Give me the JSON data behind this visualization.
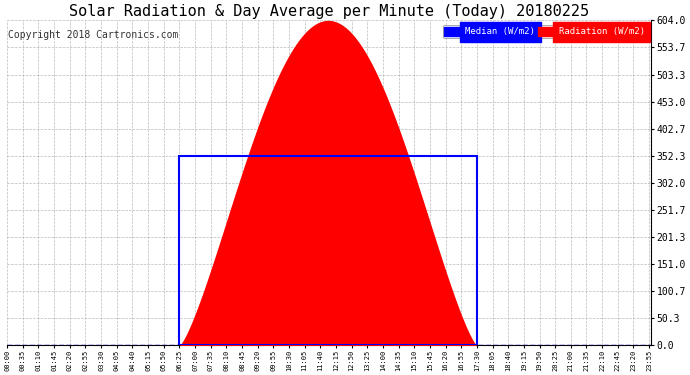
{
  "title": "Solar Radiation & Day Average per Minute (Today) 20180225",
  "copyright": "Copyright 2018 Cartronics.com",
  "legend_median": "Median (W/m2)",
  "legend_radiation": "Radiation (W/m2)",
  "yticks": [
    0.0,
    50.3,
    100.7,
    151.0,
    201.3,
    251.7,
    302.0,
    352.3,
    402.7,
    453.0,
    503.3,
    553.7,
    604.0
  ],
  "ymax": 604.0,
  "ymin": 0.0,
  "median_value": 352.3,
  "radiation_color": "#FF0000",
  "median_color": "#0000FF",
  "background_color": "#FFFFFF",
  "title_fontsize": 11,
  "copyright_fontsize": 7,
  "sun_rise_min": 385,
  "sun_set_min": 1050,
  "sun_peak_min": 700,
  "peak_radiation": 604.0,
  "grid_color": "#AAAAAA",
  "tick_interval_min": 35
}
